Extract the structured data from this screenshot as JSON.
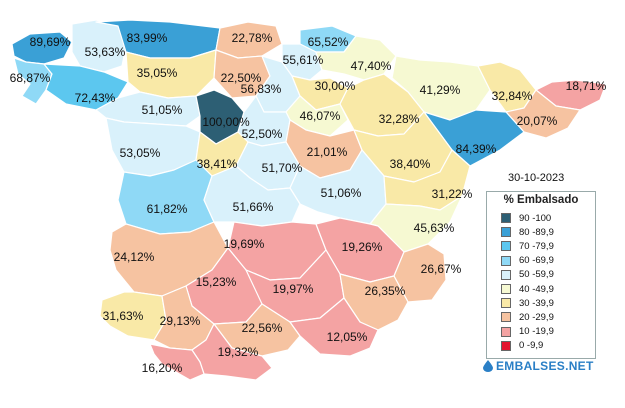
{
  "map": {
    "date": "30-10-2023",
    "legend_title": "% Embalsado",
    "legend": [
      {
        "range": "90 -100",
        "color": "#2d5f74"
      },
      {
        "range": "80 -89,9",
        "color": "#3aa0d6"
      },
      {
        "range": "70 -79,9",
        "color": "#5cc7ef"
      },
      {
        "range": "60 -69,9",
        "color": "#8fd9f6"
      },
      {
        "range": "50 -59,9",
        "color": "#d9f1fb"
      },
      {
        "range": "40 -49,9",
        "color": "#f6f9d2"
      },
      {
        "range": "30 -39,9",
        "color": "#f9e9a7"
      },
      {
        "range": "20 -29,9",
        "color": "#f6c3a1"
      },
      {
        "range": "10 -19,9",
        "color": "#f4a3a3"
      },
      {
        "range": "0 -9,9",
        "color": "#e3152f"
      }
    ],
    "brand": "EMBALSES.NET",
    "regions": [
      {
        "label": "89,69%",
        "color": "#3aa0d6"
      },
      {
        "label": "68,87%",
        "color": "#8fd9f6"
      },
      {
        "label": "53,63%",
        "color": "#d9f1fb"
      },
      {
        "label": "72,43%",
        "color": "#5cc7ef"
      },
      {
        "label": "83,99%",
        "color": "#3aa0d6"
      },
      {
        "label": "22,78%",
        "color": "#f6c3a1"
      },
      {
        "label": "65,52%",
        "color": "#8fd9f6"
      },
      {
        "label": "55,61%",
        "color": "#d9f1fb"
      },
      {
        "label": "47,40%",
        "color": "#f6f9d2"
      },
      {
        "label": "35,05%",
        "color": "#f9e9a7"
      },
      {
        "label": "22,50%",
        "color": "#f6c3a1"
      },
      {
        "label": "56,83%",
        "color": "#d9f1fb"
      },
      {
        "label": "30,00%",
        "color": "#f9e9a7"
      },
      {
        "label": "41,29%",
        "color": "#f6f9d2"
      },
      {
        "label": "32,84%",
        "color": "#f9e9a7"
      },
      {
        "label": "18,71%",
        "color": "#f4a3a3"
      },
      {
        "label": "51,05%",
        "color": "#d9f1fb"
      },
      {
        "label": "100,00%",
        "color": "#2d5f74"
      },
      {
        "label": "46,07%",
        "color": "#f6f9d2"
      },
      {
        "label": "32,28%",
        "color": "#f9e9a7"
      },
      {
        "label": "20,07%",
        "color": "#f6c3a1"
      },
      {
        "label": "52,50%",
        "color": "#d9f1fb"
      },
      {
        "label": "84,39%",
        "color": "#3aa0d6"
      },
      {
        "label": "53,05%",
        "color": "#d9f1fb"
      },
      {
        "label": "21,01%",
        "color": "#f6c3a1"
      },
      {
        "label": "38,41%",
        "color": "#f9e9a7"
      },
      {
        "label": "51,70%",
        "color": "#d9f1fb"
      },
      {
        "label": "38,40%",
        "color": "#f9e9a7"
      },
      {
        "label": "51,06%",
        "color": "#d9f1fb"
      },
      {
        "label": "31,22%",
        "color": "#f9e9a7"
      },
      {
        "label": "61,82%",
        "color": "#8fd9f6"
      },
      {
        "label": "51,66%",
        "color": "#d9f1fb"
      },
      {
        "label": "45,63%",
        "color": "#f6f9d2"
      },
      {
        "label": "19,69%",
        "color": "#f4a3a3"
      },
      {
        "label": "19,26%",
        "color": "#f4a3a3"
      },
      {
        "label": "24,12%",
        "color": "#f6c3a1"
      },
      {
        "label": "26,67%",
        "color": "#f6c3a1"
      },
      {
        "label": "15,23%",
        "color": "#f4a3a3"
      },
      {
        "label": "19,97%",
        "color": "#f4a3a3"
      },
      {
        "label": "26,35%",
        "color": "#f6c3a1"
      },
      {
        "label": "31,63%",
        "color": "#f9e9a7"
      },
      {
        "label": "29,13%",
        "color": "#f6c3a1"
      },
      {
        "label": "22,56%",
        "color": "#f6c3a1"
      },
      {
        "label": "12,05%",
        "color": "#f4a3a3"
      },
      {
        "label": "19,32%",
        "color": "#f4a3a3"
      },
      {
        "label": "16,20%",
        "color": "#f4a3a3"
      }
    ]
  }
}
